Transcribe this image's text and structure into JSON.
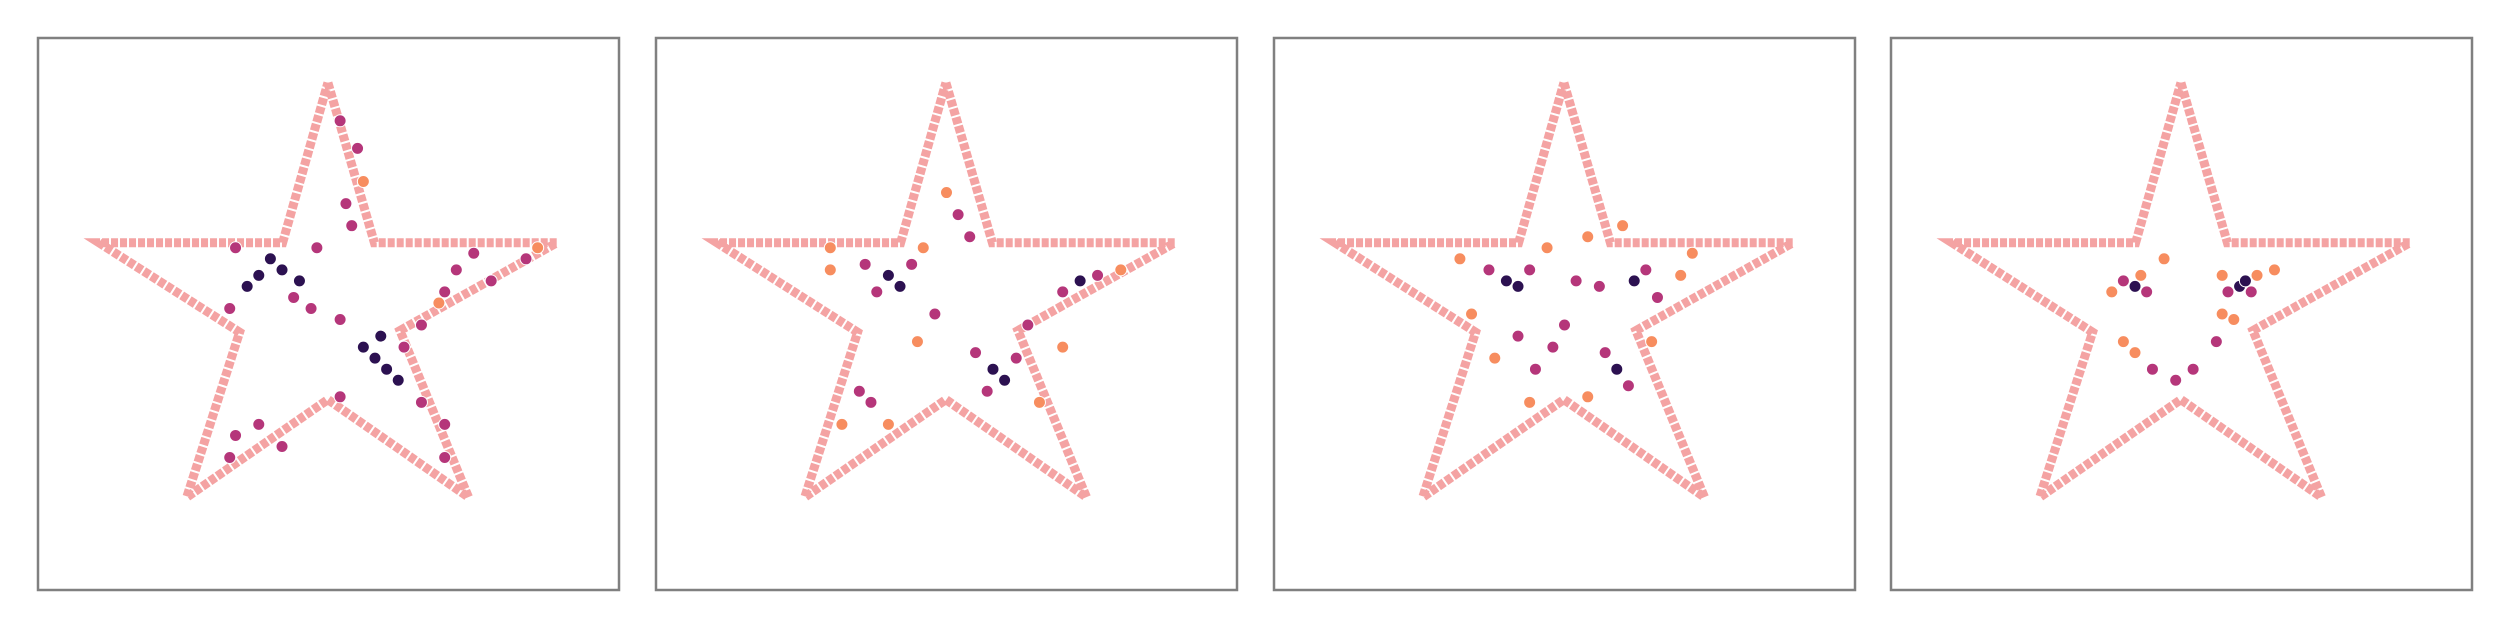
{
  "chart_data": [
    {
      "type": "scatter",
      "xlim": [
        0,
        100
      ],
      "ylim": [
        0,
        100
      ],
      "outline": {
        "color": "#f4a3a3",
        "x": [
          49.9,
          57.9,
          89.3,
          62.3,
          74.1,
          49.9,
          25.6,
          34.7,
          10.5,
          42.1,
          49.9
        ],
        "y": [
          91.9,
          62.9,
          62.9,
          47.0,
          16.8,
          34.5,
          16.8,
          46.7,
          62.9,
          62.9,
          91.9
        ]
      },
      "series": [
        {
          "color": "#2c1151",
          "x": [
            38,
            42,
            36,
            40,
            45,
            58,
            60,
            56,
            62,
            59
          ],
          "y": [
            57,
            58,
            55,
            60,
            56,
            42,
            40,
            44,
            38,
            46
          ]
        },
        {
          "color": "#b5367a",
          "x": [
            33,
            48,
            34,
            47,
            44,
            52,
            66,
            52,
            66,
            63,
            72,
            78,
            84,
            75,
            70,
            53,
            55,
            52,
            54,
            34,
            38,
            42,
            33,
            70,
            70
          ],
          "y": [
            51,
            62,
            62,
            51,
            53,
            35,
            48,
            49,
            34,
            44,
            58,
            56,
            60,
            61,
            54,
            70,
            80,
            85,
            66,
            28,
            30,
            26,
            24,
            24,
            30
          ]
        },
        {
          "color": "#f78d5f",
          "x": [
            86,
            69,
            56
          ],
          "y": [
            62,
            52,
            74
          ]
        }
      ]
    },
    {
      "type": "scatter",
      "xlim": [
        0,
        100
      ],
      "ylim": [
        0,
        100
      ],
      "outline": {
        "color": "#f4a3a3",
        "x": [
          49.9,
          57.9,
          89.3,
          62.3,
          74.1,
          49.9,
          25.6,
          34.7,
          10.5,
          42.1,
          49.9
        ],
        "y": [
          91.9,
          62.9,
          62.9,
          47.0,
          16.8,
          34.5,
          16.8,
          46.7,
          62.9,
          62.9,
          91.9
        ]
      },
      "series": [
        {
          "color": "#2c1151",
          "x": [
            40,
            42,
            58,
            60,
            73
          ],
          "y": [
            57,
            55,
            40,
            38,
            56
          ]
        },
        {
          "color": "#b5367a",
          "x": [
            36,
            44,
            38,
            55,
            62,
            57,
            70,
            76,
            37,
            35,
            52,
            54,
            48,
            64
          ],
          "y": [
            59,
            59,
            54,
            43,
            42,
            36,
            54,
            57,
            34,
            36,
            68,
            64,
            50,
            48
          ]
        },
        {
          "color": "#f78d5f",
          "x": [
            30,
            46,
            32,
            40,
            66,
            80,
            50,
            45,
            30,
            70
          ],
          "y": [
            58,
            62,
            30,
            30,
            34,
            58,
            72,
            45,
            62,
            44
          ]
        }
      ]
    },
    {
      "type": "scatter",
      "xlim": [
        0,
        100
      ],
      "ylim": [
        0,
        100
      ],
      "outline": {
        "color": "#f4a3a3",
        "x": [
          49.9,
          57.9,
          89.3,
          62.3,
          74.1,
          49.9,
          25.6,
          34.7,
          10.5,
          42.1,
          49.9
        ],
        "y": [
          91.9,
          62.9,
          62.9,
          47.0,
          16.8,
          34.5,
          16.8,
          46.7,
          62.9,
          62.9,
          91.9
        ]
      },
      "series": [
        {
          "color": "#2c1151",
          "x": [
            40,
            42,
            59,
            62
          ],
          "y": [
            56,
            55,
            40,
            56
          ]
        },
        {
          "color": "#b5367a",
          "x": [
            37,
            44,
            52,
            56,
            64,
            66,
            57,
            61,
            45,
            48,
            50,
            42
          ],
          "y": [
            58,
            58,
            56,
            55,
            58,
            53,
            43,
            37,
            40,
            44,
            48,
            46
          ]
        },
        {
          "color": "#f78d5f",
          "x": [
            32,
            34,
            47,
            54,
            70,
            72,
            44,
            54,
            65,
            38,
            60
          ],
          "y": [
            60,
            50,
            62,
            64,
            57,
            61,
            34,
            35,
            45,
            42,
            66
          ]
        }
      ]
    },
    {
      "type": "scatter",
      "xlim": [
        0,
        100
      ],
      "ylim": [
        0,
        100
      ],
      "outline": {
        "color": "#f4a3a3",
        "x": [
          49.9,
          57.9,
          89.3,
          62.3,
          74.1,
          49.9,
          25.6,
          34.7,
          10.5,
          42.1,
          49.9
        ],
        "y": [
          91.9,
          62.9,
          62.9,
          47.0,
          16.8,
          34.5,
          16.8,
          46.7,
          62.9,
          62.9,
          91.9
        ]
      },
      "series": [
        {
          "color": "#2c1151",
          "x": [
            42,
            60,
            61
          ],
          "y": [
            55,
            55,
            56
          ]
        },
        {
          "color": "#b5367a",
          "x": [
            40,
            44,
            58,
            62,
            45,
            49,
            52,
            56
          ],
          "y": [
            56,
            54,
            54,
            54,
            40,
            38,
            40,
            45
          ]
        },
        {
          "color": "#f78d5f",
          "x": [
            38,
            43,
            57,
            63,
            40,
            42,
            57,
            59,
            66,
            47
          ],
          "y": [
            54,
            57,
            57,
            57,
            45,
            43,
            50,
            49,
            58,
            60
          ]
        }
      ]
    }
  ]
}
